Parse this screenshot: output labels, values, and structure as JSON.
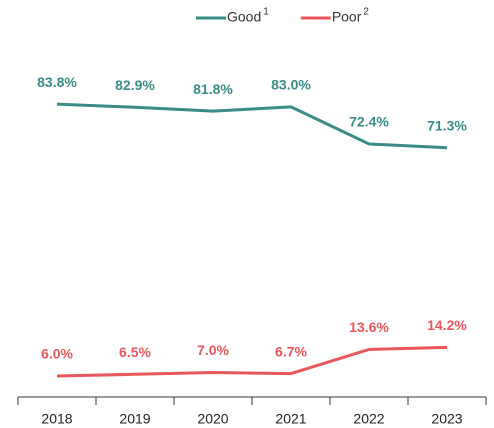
{
  "chart_data": {
    "type": "line",
    "categories": [
      "2018",
      "2019",
      "2020",
      "2021",
      "2022",
      "2023"
    ],
    "series": [
      {
        "name": "Good",
        "footnote": "1",
        "color": "#3a8c86",
        "values": [
          83.8,
          82.9,
          81.8,
          83.0,
          72.4,
          71.3
        ],
        "value_labels": [
          "83.8%",
          "82.9%",
          "81.8%",
          "83.0%",
          "72.4%",
          "71.3%"
        ]
      },
      {
        "name": "Poor",
        "footnote": "2",
        "color": "#e8575c",
        "values": [
          6.0,
          6.5,
          7.0,
          6.7,
          13.6,
          14.2
        ],
        "value_labels": [
          "6.0%",
          "6.5%",
          "7.0%",
          "6.7%",
          "13.6%",
          "14.2%"
        ]
      }
    ],
    "ylim": [
      0,
      105
    ],
    "legend": "top"
  }
}
